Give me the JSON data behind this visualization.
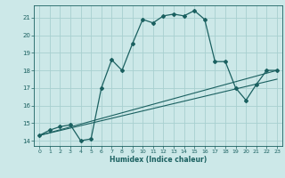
{
  "xlabel": "Humidex (Indice chaleur)",
  "bg_color": "#cce8e8",
  "grid_color": "#a8d0d0",
  "line_color": "#1a6060",
  "xlim": [
    -0.5,
    23.5
  ],
  "ylim": [
    13.7,
    21.7
  ],
  "yticks": [
    14,
    15,
    16,
    17,
    18,
    19,
    20,
    21
  ],
  "xticks": [
    0,
    1,
    2,
    3,
    4,
    5,
    6,
    7,
    8,
    9,
    10,
    11,
    12,
    13,
    14,
    15,
    16,
    17,
    18,
    19,
    20,
    21,
    22,
    23
  ],
  "curve1_x": [
    0,
    1,
    2,
    3,
    4,
    5,
    6,
    7,
    8,
    9,
    10,
    11,
    12,
    13,
    14,
    15,
    16,
    17,
    18,
    19,
    20,
    21,
    22,
    23
  ],
  "curve1_y": [
    14.3,
    14.6,
    14.8,
    14.9,
    14.0,
    14.1,
    17.0,
    18.6,
    18.0,
    19.5,
    20.9,
    20.7,
    21.1,
    21.2,
    21.1,
    21.4,
    20.9,
    18.5,
    18.5,
    17.0,
    16.3,
    17.2,
    18.0,
    18.0
  ],
  "line2_x": [
    0,
    23
  ],
  "line2_y": [
    14.3,
    17.5
  ],
  "line3_x": [
    0,
    23
  ],
  "line3_y": [
    14.3,
    18.0
  ]
}
